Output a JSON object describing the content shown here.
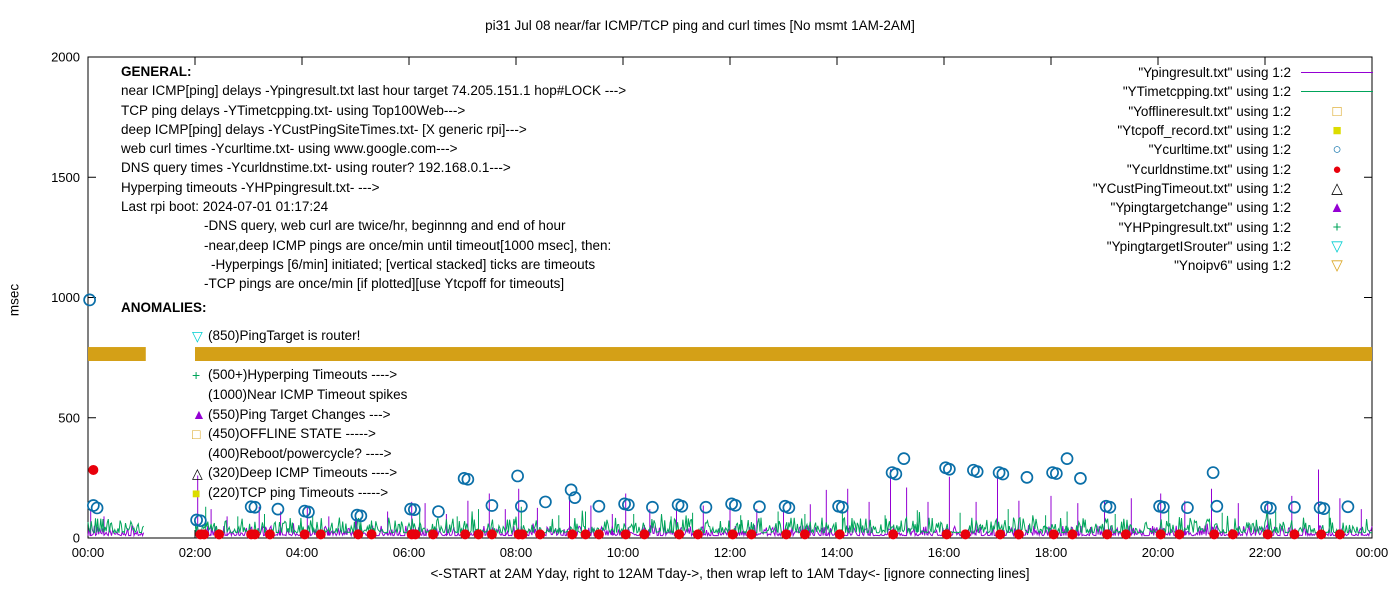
{
  "title": "pi31 Jul 08  near/far ICMP/TCP ping and curl times [No msmt 1AM-2AM]",
  "ylabel": "msec",
  "xlabel": "<-START at 2AM Yday, right to 12AM Tday->, then wrap left to 1AM Tday<- [ignore connecting lines]",
  "axes": {
    "x_ticks": [
      {
        "h": 0,
        "label": "00:00"
      },
      {
        "h": 2,
        "label": "02:00"
      },
      {
        "h": 4,
        "label": "04:00"
      },
      {
        "h": 6,
        "label": "06:00"
      },
      {
        "h": 8,
        "label": "08:00"
      },
      {
        "h": 10,
        "label": "10:00"
      },
      {
        "h": 12,
        "label": "12:00"
      },
      {
        "h": 14,
        "label": "14:00"
      },
      {
        "h": 16,
        "label": "16:00"
      },
      {
        "h": 18,
        "label": "18:00"
      },
      {
        "h": 20,
        "label": "20:00"
      },
      {
        "h": 22,
        "label": "22:00"
      },
      {
        "h": 24,
        "label": "00:00"
      }
    ],
    "y_ticks": [
      {
        "v": 0,
        "label": "0"
      },
      {
        "v": 500,
        "label": "500"
      },
      {
        "v": 1000,
        "label": "1000"
      },
      {
        "v": 1500,
        "label": "1500"
      },
      {
        "v": 2000,
        "label": "2000"
      }
    ]
  },
  "general": {
    "heading": "GENERAL:",
    "lines": [
      {
        "text": "near ICMP[ping] delays -Ypingresult.txt last hour target 74.205.151.1 hop#LOCK --->",
        "indent": 0
      },
      {
        "text": "TCP ping delays -YTimetcpping.txt- using Top100Web--->",
        "indent": 0
      },
      {
        "text": "deep ICMP[ping] delays -YCustPingSiteTimes.txt- [X generic rpi]--->",
        "indent": 0
      },
      {
        "text": "web curl times -Ycurltime.txt- using www.google.com--->",
        "indent": 0
      },
      {
        "text": "DNS query times -Ycurldnstime.txt- using router? 192.168.0.1--->",
        "indent": 0
      },
      {
        "text": "Hyperping timeouts -YHPpingresult.txt- --->",
        "indent": 0
      },
      {
        "text": "Last rpi boot: 2024-07-01 01:17:24",
        "indent": 0
      },
      {
        "text": "-DNS query, web curl are twice/hr, beginnng and end of hour",
        "indent": 1
      },
      {
        "text": "-near,deep ICMP pings are once/min until timeout[1000 msec], then:",
        "indent": 1
      },
      {
        "text": "-Hyperpings [6/min] initiated; [vertical stacked] ticks are timeouts",
        "indent": 2
      },
      {
        "text": "-TCP pings are once/min [if plotted][use Ytcpoff for timeouts]",
        "indent": 1
      }
    ]
  },
  "anomalies": {
    "heading": "ANOMALIES:",
    "rows": [
      {
        "glyph": "▽",
        "icon": "open-triangle-down-icon",
        "color": "#00CED1",
        "text": "(850)PingTarget is router!",
        "spacer": false
      },
      {
        "glyph": "",
        "icon": "",
        "color": "",
        "text": "",
        "spacer": true
      },
      {
        "glyph": "+",
        "icon": "plus-icon",
        "color": "#00A45A",
        "text": "(500+)Hyperping Timeouts ---->",
        "spacer": false
      },
      {
        "glyph": "",
        "icon": "",
        "color": "",
        "text": "(1000)Near ICMP Timeout spikes",
        "spacer": false
      },
      {
        "glyph": "▲",
        "icon": "filled-triangle-up-icon",
        "color": "#9400D3",
        "text": "(550)Ping Target Changes --->",
        "spacer": false
      },
      {
        "glyph": "□",
        "icon": "open-square-icon",
        "color": "#DAA520",
        "text": "(450)OFFLINE STATE ----->",
        "spacer": false
      },
      {
        "glyph": "",
        "icon": "",
        "color": "",
        "text": "(400)Reboot/powercycle? ---->",
        "spacer": false
      },
      {
        "glyph": "△",
        "icon": "open-triangle-up-icon",
        "color": "#000000",
        "text": "(320)Deep ICMP Timeouts ---->",
        "spacer": false
      },
      {
        "glyph": "■",
        "icon": "filled-square-icon",
        "color": "#DCDC00",
        "text": "(220)TCP ping Timeouts ----->",
        "spacer": false
      }
    ]
  },
  "legend": {
    "items": [
      {
        "label": "\"Ypingresult.txt\" using 1:2",
        "sample": "line",
        "glyph": "",
        "icon": "line-sample-icon",
        "color": "#9400D3"
      },
      {
        "label": "\"YTimetcpping.txt\" using 1:2",
        "sample": "line",
        "glyph": "",
        "icon": "line-sample-icon",
        "color": "#00A45A"
      },
      {
        "label": "\"Yofflineresult.txt\" using 1:2",
        "sample": "glyph",
        "glyph": "□",
        "icon": "open-square-icon",
        "color": "#DAA520"
      },
      {
        "label": "\"Ytcpoff_record.txt\" using 1:2",
        "sample": "glyph",
        "glyph": "■",
        "icon": "filled-square-icon",
        "color": "#DCDC00"
      },
      {
        "label": "\"Ycurltime.txt\" using 1:2",
        "sample": "glyph",
        "glyph": "○",
        "icon": "open-circle-icon",
        "color": "#0A6FA8"
      },
      {
        "label": "\"Ycurldnstime.txt\" using 1:2",
        "sample": "glyph",
        "glyph": "●",
        "icon": "filled-circle-icon",
        "color": "#E8000B"
      },
      {
        "label": "\"YCustPingTimeout.txt\" using 1:2",
        "sample": "glyph",
        "glyph": "△",
        "icon": "open-triangle-up-icon",
        "color": "#000000"
      },
      {
        "label": "\"Ypingtargetchange\" using 1:2",
        "sample": "glyph",
        "glyph": "▲",
        "icon": "filled-triangle-up-icon",
        "color": "#9400D3"
      },
      {
        "label": "\"YHPpingresult.txt\" using 1:2",
        "sample": "glyph",
        "glyph": "+",
        "icon": "plus-icon",
        "color": "#00A45A"
      },
      {
        "label": "\"YpingtargetISrouter\" using 1:2",
        "sample": "glyph",
        "glyph": "▽",
        "icon": "open-triangle-down-icon",
        "color": "#00CED1"
      },
      {
        "label": "\"Ynoipv6\" using 1:2",
        "sample": "glyph",
        "glyph": "▽",
        "icon": "open-triangle-down-icon",
        "color": "#DAA520"
      }
    ]
  },
  "chart_data": {
    "type": "line",
    "x_range_hours": [
      0,
      24
    ],
    "ylim": [
      0,
      2000
    ],
    "no_measurement_gap_hours": [
      1.05,
      2.0
    ],
    "series": [
      {
        "name": "Ypingresult.txt",
        "kind": "noisy-line",
        "color": "#9400D3",
        "baseline": 10,
        "noise": 28,
        "spikes": [
          [
            0.05,
            120
          ],
          [
            0.3,
            90
          ],
          [
            2.05,
            260
          ],
          [
            2.3,
            120
          ],
          [
            2.6,
            90
          ],
          [
            3.2,
            130
          ],
          [
            3.6,
            110
          ],
          [
            4.1,
            135
          ],
          [
            4.5,
            90
          ],
          [
            5.0,
            100
          ],
          [
            5.6,
            110
          ],
          [
            6.05,
            150
          ],
          [
            6.3,
            145
          ],
          [
            6.7,
            100
          ],
          [
            7.1,
            155
          ],
          [
            7.5,
            185
          ],
          [
            7.8,
            120
          ],
          [
            8.05,
            205
          ],
          [
            8.4,
            125
          ],
          [
            9.0,
            165
          ],
          [
            9.4,
            135
          ],
          [
            9.8,
            100
          ],
          [
            10.05,
            185
          ],
          [
            10.5,
            120
          ],
          [
            11.0,
            140
          ],
          [
            11.5,
            135
          ],
          [
            12.0,
            150
          ],
          [
            12.5,
            120
          ],
          [
            13.0,
            135
          ],
          [
            13.5,
            140
          ],
          [
            13.8,
            200
          ],
          [
            14.2,
            205
          ],
          [
            14.6,
            150
          ],
          [
            15.0,
            285
          ],
          [
            15.3,
            210
          ],
          [
            15.7,
            150
          ],
          [
            16.1,
            255
          ],
          [
            16.6,
            150
          ],
          [
            17.0,
            265
          ],
          [
            17.4,
            155
          ],
          [
            18.0,
            175
          ],
          [
            18.5,
            145
          ],
          [
            19.0,
            155
          ],
          [
            19.5,
            165
          ],
          [
            20.05,
            185
          ],
          [
            20.5,
            155
          ],
          [
            21.0,
            205
          ],
          [
            21.5,
            145
          ],
          [
            22.05,
            155
          ],
          [
            22.5,
            175
          ],
          [
            23.0,
            285
          ],
          [
            23.4,
            165
          ],
          [
            23.8,
            120
          ]
        ]
      },
      {
        "name": "YTimetcpping.txt",
        "kind": "noisy-line",
        "color": "#00A45A",
        "baseline": 22,
        "noise": 42,
        "spikes": [
          [
            2.2,
            130
          ],
          [
            2.8,
            90
          ],
          [
            3.3,
            100
          ],
          [
            4.2,
            95
          ],
          [
            5.1,
            85
          ],
          [
            6.2,
            110
          ],
          [
            6.9,
            90
          ],
          [
            7.3,
            120
          ],
          [
            8.1,
            130
          ],
          [
            8.8,
            95
          ],
          [
            9.3,
            110
          ],
          [
            10.2,
            100
          ],
          [
            10.9,
            90
          ],
          [
            11.3,
            105
          ],
          [
            12.2,
            95
          ],
          [
            12.9,
            110
          ],
          [
            13.4,
            100
          ],
          [
            14.1,
            120
          ],
          [
            14.9,
            95
          ],
          [
            15.5,
            115
          ],
          [
            16.3,
            105
          ],
          [
            17.2,
            120
          ],
          [
            17.9,
            95
          ],
          [
            18.3,
            110
          ],
          [
            19.2,
            100
          ],
          [
            20.2,
            115
          ],
          [
            21.2,
            105
          ],
          [
            22.2,
            110
          ],
          [
            23.2,
            120
          ]
        ]
      },
      {
        "name": "Ynoipv6",
        "kind": "band",
        "color": "#D4A017",
        "value": 765,
        "thickness_msec": 58,
        "segments_hours": [
          [
            0,
            1.08
          ],
          [
            2.0,
            24.0
          ]
        ]
      },
      {
        "name": "Ycurltime.txt",
        "kind": "scatter",
        "marker": "circle-open",
        "color": "#0A6FA8",
        "points": [
          [
            0.03,
            990
          ],
          [
            0.1,
            135
          ],
          [
            0.17,
            125
          ],
          [
            2.03,
            75
          ],
          [
            2.1,
            72
          ],
          [
            3.05,
            130
          ],
          [
            3.12,
            128
          ],
          [
            3.55,
            120
          ],
          [
            4.05,
            112
          ],
          [
            4.12,
            108
          ],
          [
            5.03,
            95
          ],
          [
            5.1,
            92
          ],
          [
            6.03,
            120
          ],
          [
            6.1,
            118
          ],
          [
            6.55,
            110
          ],
          [
            7.03,
            248
          ],
          [
            7.1,
            244
          ],
          [
            7.55,
            135
          ],
          [
            8.03,
            258
          ],
          [
            8.1,
            132
          ],
          [
            8.55,
            150
          ],
          [
            9.03,
            200
          ],
          [
            9.1,
            168
          ],
          [
            9.55,
            132
          ],
          [
            10.03,
            142
          ],
          [
            10.1,
            138
          ],
          [
            10.55,
            128
          ],
          [
            11.03,
            138
          ],
          [
            11.1,
            132
          ],
          [
            11.55,
            128
          ],
          [
            12.03,
            142
          ],
          [
            12.1,
            136
          ],
          [
            12.55,
            130
          ],
          [
            13.03,
            132
          ],
          [
            13.1,
            126
          ],
          [
            14.03,
            132
          ],
          [
            14.1,
            128
          ],
          [
            15.03,
            272
          ],
          [
            15.1,
            266
          ],
          [
            15.25,
            330
          ],
          [
            16.03,
            292
          ],
          [
            16.1,
            286
          ],
          [
            16.55,
            282
          ],
          [
            16.62,
            276
          ],
          [
            17.03,
            272
          ],
          [
            17.1,
            266
          ],
          [
            17.55,
            252
          ],
          [
            18.03,
            272
          ],
          [
            18.1,
            268
          ],
          [
            18.3,
            330
          ],
          [
            18.55,
            248
          ],
          [
            19.03,
            132
          ],
          [
            19.1,
            128
          ],
          [
            20.03,
            132
          ],
          [
            20.1,
            128
          ],
          [
            20.55,
            126
          ],
          [
            21.03,
            272
          ],
          [
            21.1,
            132
          ],
          [
            22.03,
            128
          ],
          [
            22.1,
            124
          ],
          [
            22.55,
            128
          ],
          [
            23.03,
            126
          ],
          [
            23.1,
            122
          ],
          [
            23.55,
            130
          ]
        ]
      },
      {
        "name": "Ycurldnstime.txt",
        "kind": "scatter",
        "marker": "circle-filled",
        "color": "#E8000B",
        "points": [
          [
            0.1,
            283
          ],
          [
            2.1,
            15
          ],
          [
            2.17,
            15
          ],
          [
            2.45,
            15
          ],
          [
            3.05,
            15
          ],
          [
            3.12,
            15
          ],
          [
            3.4,
            15
          ],
          [
            4.05,
            15
          ],
          [
            4.35,
            15
          ],
          [
            5.05,
            15
          ],
          [
            5.3,
            15
          ],
          [
            6.05,
            15
          ],
          [
            6.12,
            15
          ],
          [
            6.45,
            15
          ],
          [
            7.05,
            15
          ],
          [
            7.3,
            15
          ],
          [
            7.55,
            15
          ],
          [
            8.05,
            15
          ],
          [
            8.12,
            15
          ],
          [
            8.45,
            15
          ],
          [
            9.05,
            15
          ],
          [
            9.3,
            15
          ],
          [
            9.55,
            15
          ],
          [
            10.05,
            15
          ],
          [
            10.4,
            15
          ],
          [
            11.05,
            15
          ],
          [
            11.4,
            15
          ],
          [
            12.05,
            15
          ],
          [
            12.4,
            15
          ],
          [
            13.05,
            15
          ],
          [
            13.4,
            15
          ],
          [
            14.05,
            15
          ],
          [
            15.05,
            15
          ],
          [
            16.05,
            15
          ],
          [
            16.4,
            15
          ],
          [
            17.05,
            15
          ],
          [
            17.4,
            15
          ],
          [
            18.05,
            15
          ],
          [
            18.4,
            15
          ],
          [
            19.05,
            15
          ],
          [
            19.4,
            15
          ],
          [
            20.05,
            15
          ],
          [
            20.4,
            15
          ],
          [
            21.05,
            15
          ],
          [
            21.4,
            15
          ],
          [
            22.05,
            15
          ],
          [
            22.55,
            15
          ],
          [
            23.05,
            15
          ],
          [
            23.4,
            15
          ]
        ]
      }
    ]
  }
}
